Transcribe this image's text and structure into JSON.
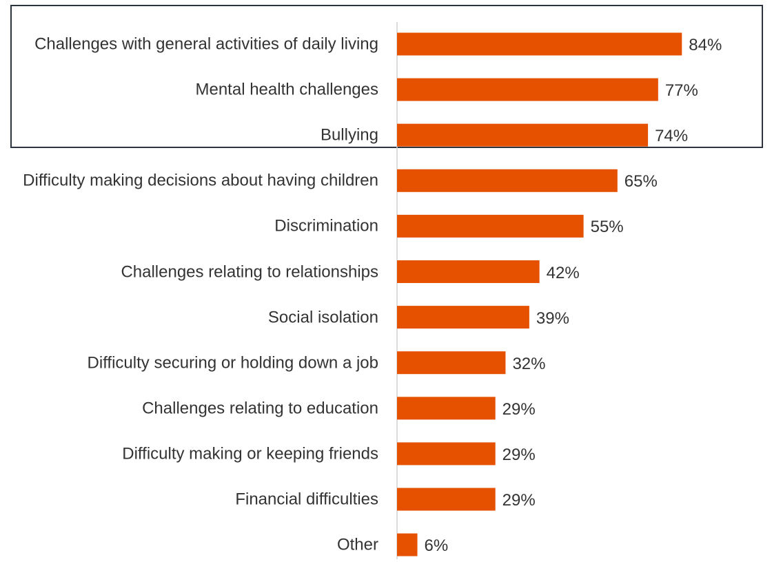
{
  "chart_data": {
    "type": "bar",
    "orientation": "horizontal",
    "categories": [
      "Challenges with general activities of daily living",
      "Mental health challenges",
      "Bullying",
      "Difficulty making decisions about having children",
      "Discrimination",
      "Challenges relating to relationships",
      "Social isolation",
      "Difficulty securing or holding down a job",
      "Challenges relating to education",
      "Difficulty making or keeping friends",
      "Financial difficulties",
      "Other"
    ],
    "values": [
      84,
      77,
      74,
      65,
      55,
      42,
      39,
      32,
      29,
      29,
      29,
      6
    ],
    "value_labels": [
      "84%",
      "77%",
      "74%",
      "65%",
      "55%",
      "42%",
      "39%",
      "32%",
      "29%",
      "29%",
      "29%",
      "6%"
    ],
    "color": "#e65100",
    "xlim": [
      0,
      100
    ]
  }
}
